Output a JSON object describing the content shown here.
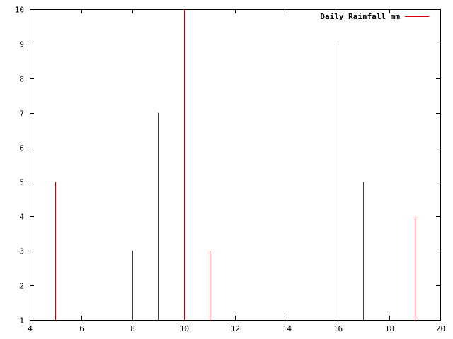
{
  "chart_data": {
    "type": "impulses",
    "title": "",
    "xlabel": "",
    "ylabel": "",
    "xlim": [
      4,
      20
    ],
    "ylim": [
      1,
      10
    ],
    "x_ticks": [
      "4",
      "6",
      "8",
      "10",
      "12",
      "14",
      "16",
      "18",
      "20"
    ],
    "y_ticks": [
      "1",
      "2",
      "3",
      "4",
      "5",
      "6",
      "7",
      "8",
      "9",
      "10"
    ],
    "grid": false,
    "legend_position": "top-right",
    "series": [
      {
        "name": "Daily Rainfall mm",
        "color": "#cc0000",
        "points": [
          {
            "x": 5,
            "y": 5
          },
          {
            "x": 8,
            "y": 3
          },
          {
            "x": 9,
            "y": 7
          },
          {
            "x": 10,
            "y": 10
          },
          {
            "x": 11,
            "y": 3
          },
          {
            "x": 16,
            "y": 9
          },
          {
            "x": 17,
            "y": 5
          },
          {
            "x": 19,
            "y": 4
          }
        ]
      }
    ]
  }
}
